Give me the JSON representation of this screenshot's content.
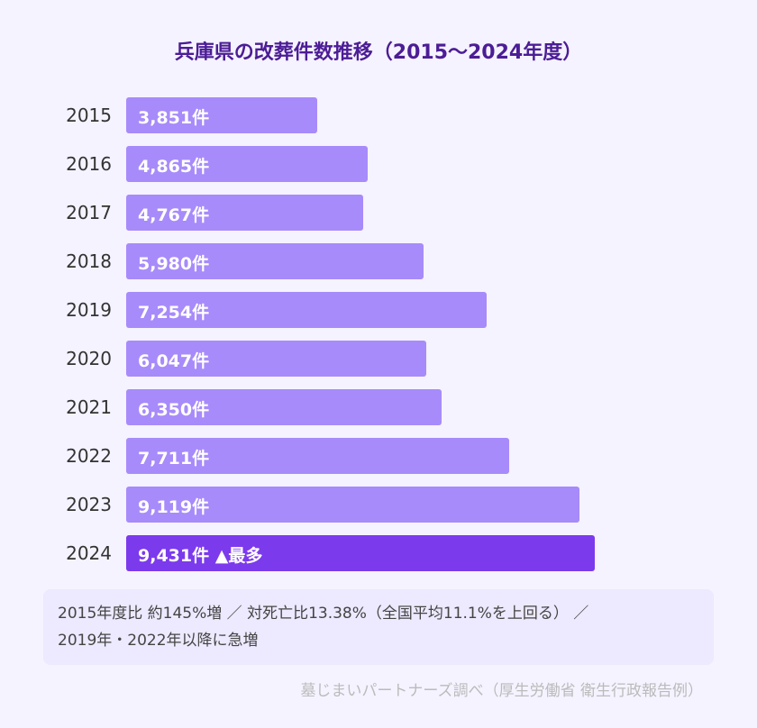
{
  "chart_data": {
    "type": "bar",
    "orientation": "horizontal",
    "title": "兵庫県の改葬件数推移（2015〜2024年度）",
    "categories": [
      "2015",
      "2016",
      "2017",
      "2018",
      "2019",
      "2020",
      "2021",
      "2022",
      "2023",
      "2024"
    ],
    "values": [
      3851,
      4865,
      4767,
      5980,
      7254,
      6047,
      6350,
      7711,
      9119,
      9431
    ],
    "data_labels": [
      "3,851件",
      "4,865件",
      "4,767件",
      "5,980件",
      "7,254件",
      "6,047件",
      "6,350件",
      "7,711件",
      "9,119件",
      "9,431件 ▲最多"
    ],
    "highlight_index": 9,
    "xlim": [
      0,
      9431
    ],
    "bar_color": "#a78bfa",
    "highlight_color": "#7c3aed"
  },
  "note": {
    "line1": "2015年度比 約145%増 ／ 対死亡比13.38%（全国平均11.1%を上回る） ／",
    "line2": "2019年・2022年以降に急増"
  },
  "source": "墓じまいパートナーズ調べ（厚生労働省 衛生行政報告例）"
}
